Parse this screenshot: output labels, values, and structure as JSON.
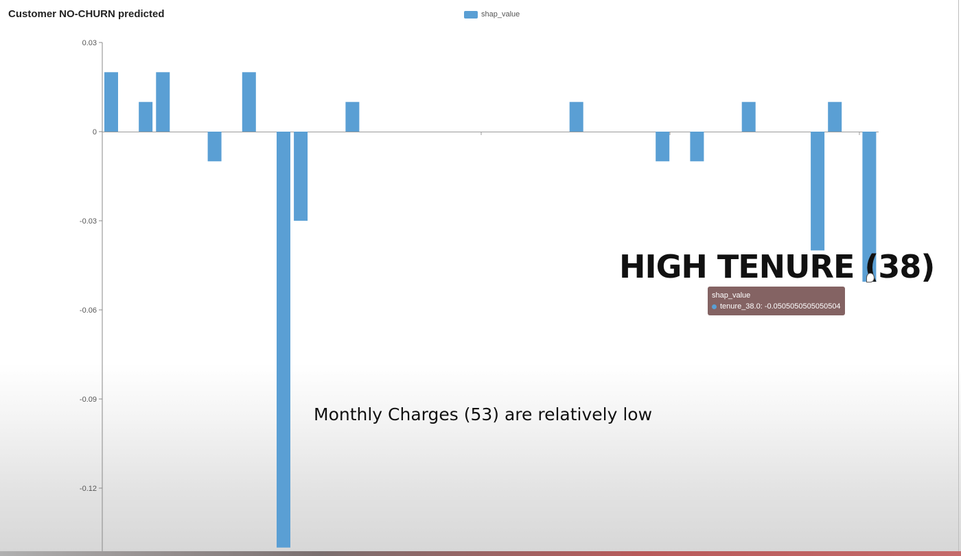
{
  "chart_data": {
    "type": "bar",
    "title": "Customer NO-CHURN predicted",
    "legend": {
      "placement": "top-center",
      "entries": [
        "shap_value"
      ]
    },
    "series": [
      {
        "name": "shap_value",
        "color": "#5a9fd4",
        "values": [
          0.02,
          0,
          0.01,
          0.02,
          0,
          0,
          -0.01,
          0,
          0.02,
          0,
          -0.14,
          -0.03,
          0,
          0,
          0.01,
          0,
          0,
          0,
          0,
          0,
          0,
          0,
          0,
          0,
          0,
          0,
          0,
          0.01,
          0,
          0,
          0,
          0,
          -0.01,
          0,
          -0.01,
          0,
          0,
          0.01,
          0,
          0,
          0,
          -0.04,
          0.01,
          0,
          -0.0505050505050504
        ]
      }
    ],
    "ylim": [
      -0.14,
      0.03
    ],
    "yticks": [
      "0.03",
      "0",
      "-0.03",
      "-0.06",
      "-0.09",
      "-0.12"
    ],
    "ytick_values": [
      0.03,
      0,
      -0.03,
      -0.06,
      -0.09,
      -0.12
    ],
    "xlabel": "",
    "ylabel": "",
    "grid": false
  },
  "annotations": {
    "high_tenure": "HIGH TENURE (38)",
    "monthly_charges": "Monthly Charges (53) are relatively low"
  },
  "tooltip": {
    "series": "shap_value",
    "entry": "tenure_38.0: -0.0505050505050504"
  }
}
